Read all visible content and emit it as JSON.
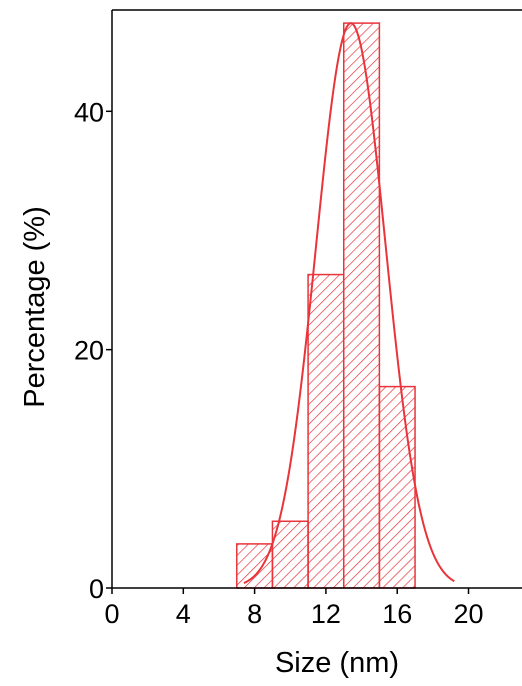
{
  "chart_data": {
    "type": "bar",
    "title": "",
    "xlabel": "Size (nm)",
    "ylabel": "Percentage (%)",
    "xlim": [
      0,
      23
    ],
    "ylim": [
      0,
      48.5
    ],
    "xticks": [
      0,
      4,
      8,
      12,
      16,
      20
    ],
    "yticks": [
      0,
      20,
      40
    ],
    "grid": false,
    "bin_width": 2,
    "bins": [
      {
        "start": 7,
        "end": 9,
        "value": 3.7
      },
      {
        "start": 9,
        "end": 11,
        "value": 5.6
      },
      {
        "start": 11,
        "end": 13,
        "value": 26.3
      },
      {
        "start": 13,
        "end": 15,
        "value": 47.4
      },
      {
        "start": 15,
        "end": 17,
        "value": 16.9
      }
    ],
    "fit": {
      "type": "gaussian",
      "center": 13.4,
      "peak": 47.4,
      "sigma": 1.95,
      "x_range": [
        7.4,
        19.2
      ]
    },
    "colors": {
      "bars": "#e8343a",
      "fit": "#e8343a",
      "axes": "#000000"
    }
  }
}
